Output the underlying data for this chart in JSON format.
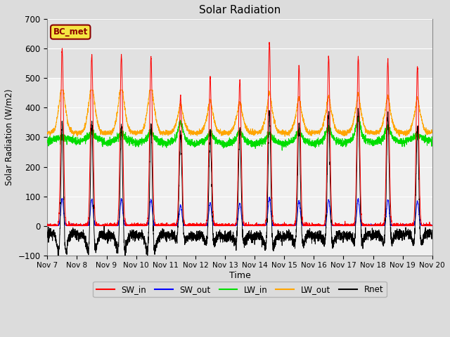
{
  "title": "Solar Radiation",
  "ylabel": "Solar Radiation (W/m2)",
  "xlabel": "Time",
  "ylim": [
    -100,
    700
  ],
  "yticks": [
    -100,
    0,
    100,
    200,
    300,
    400,
    500,
    600,
    700
  ],
  "background_color": "#dcdcdc",
  "plot_bg_color": "#f0f0f0",
  "plot_bg_top": "#e0e0e0",
  "annotation_text": "BC_met",
  "annotation_bg": "#f5e642",
  "annotation_border": "#8b0000",
  "colors": {
    "SW_in": "#ff0000",
    "SW_out": "#0000ff",
    "LW_in": "#00dd00",
    "LW_out": "#ffa500",
    "Rnet": "#000000"
  },
  "n_days": 13,
  "n_points_per_day": 288
}
